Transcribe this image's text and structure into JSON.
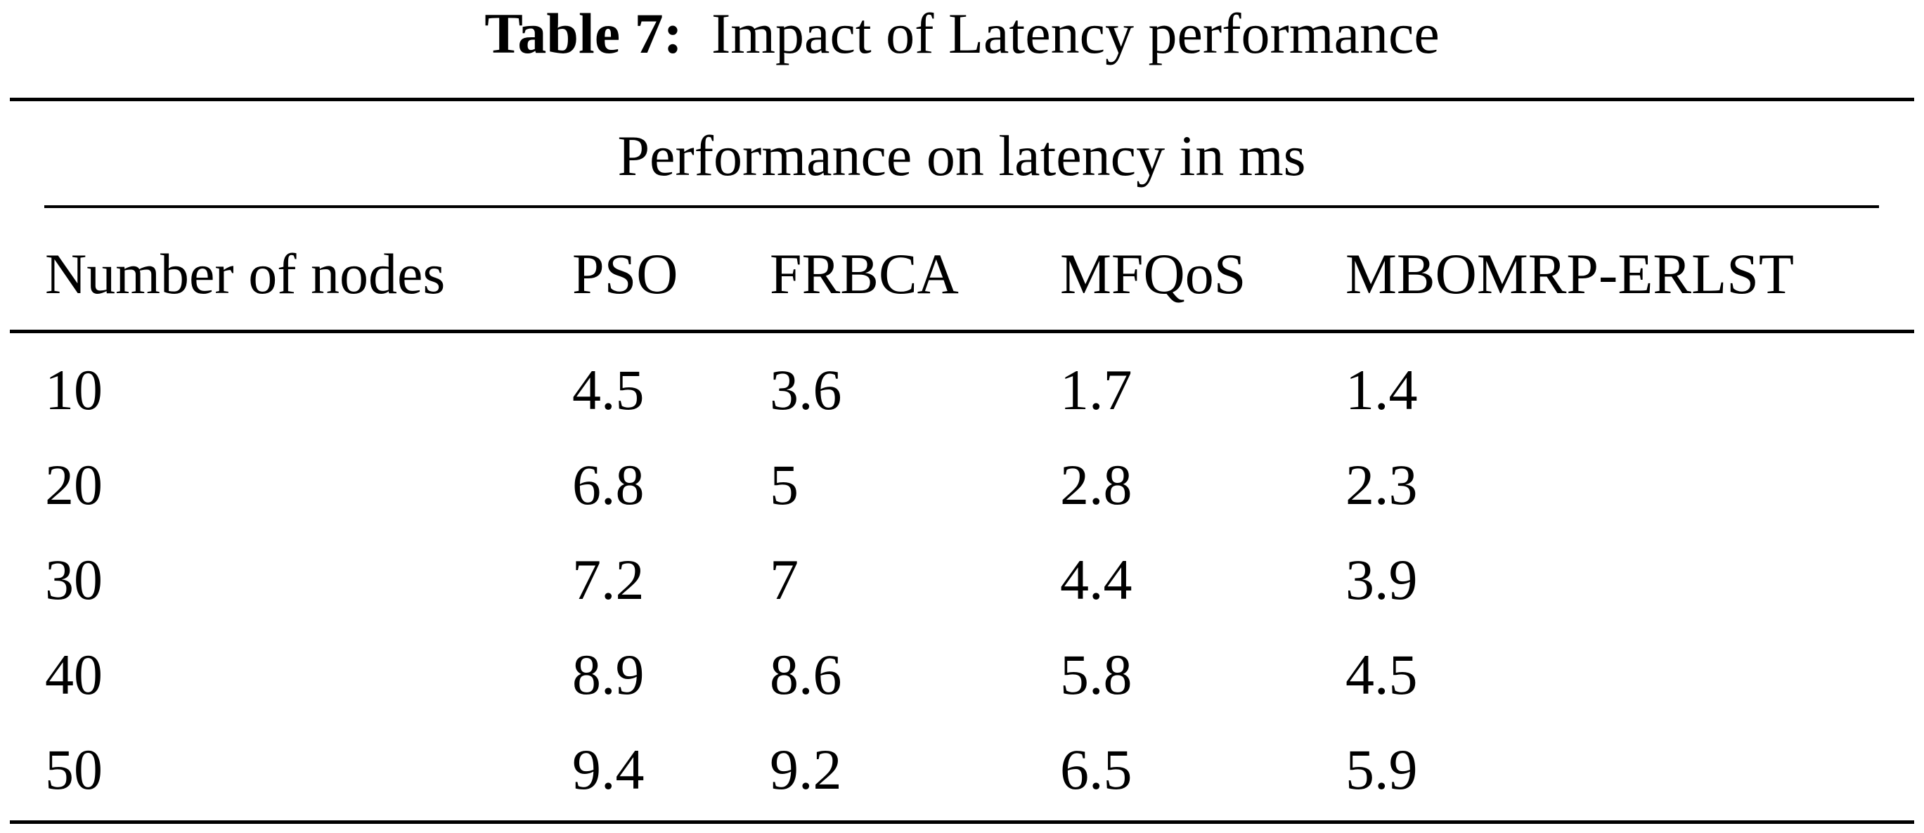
{
  "caption": {
    "label": "Table 7:",
    "text": "Impact of Latency performance"
  },
  "table": {
    "group_header": "Performance on latency in ms",
    "columns": [
      "Number of nodes",
      "PSO",
      "FRBCA",
      "MFQoS",
      "MBOMRP-ERLST"
    ],
    "rows": [
      [
        "10",
        "4.5",
        "3.6",
        "1.7",
        "1.4"
      ],
      [
        "20",
        "6.8",
        "5",
        "2.8",
        "2.3"
      ],
      [
        "30",
        "7.2",
        "7",
        "4.4",
        "3.9"
      ],
      [
        "40",
        "8.9",
        "8.6",
        "5.8",
        "4.5"
      ],
      [
        "50",
        "9.4",
        "9.2",
        "6.5",
        "5.9"
      ]
    ]
  }
}
